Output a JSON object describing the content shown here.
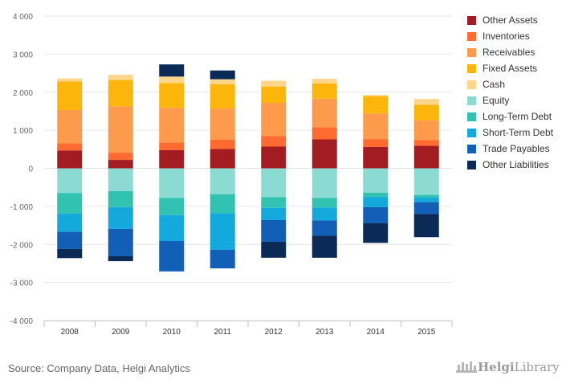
{
  "chart_data": {
    "type": "bar",
    "stacked": true,
    "categories": [
      "2008",
      "2009",
      "2010",
      "2011",
      "2012",
      "2013",
      "2014",
      "2015"
    ],
    "ylim": [
      -4000,
      4000
    ],
    "yticks": [
      -4000,
      -3000,
      -2000,
      -1000,
      0,
      1000,
      2000,
      3000,
      4000
    ],
    "ytick_labels": [
      "-4 000",
      "-3 000",
      "-2 000",
      "-1 000",
      "0",
      "1 000",
      "2 000",
      "3 000",
      "4 000"
    ],
    "legend_position": "right",
    "series": [
      {
        "name": "Other Assets",
        "color": "#a31c22",
        "values": [
          470,
          220,
          480,
          510,
          570,
          760,
          560,
          590
        ]
      },
      {
        "name": "Inventories",
        "color": "#fe6a2f",
        "values": [
          190,
          190,
          200,
          240,
          280,
          320,
          200,
          150
        ]
      },
      {
        "name": "Receivables",
        "color": "#fe9a4b",
        "values": [
          870,
          1220,
          910,
          820,
          870,
          750,
          680,
          520
        ]
      },
      {
        "name": "Fixed Assets",
        "color": "#fbb50b",
        "values": [
          750,
          690,
          650,
          640,
          430,
          400,
          450,
          410
        ]
      },
      {
        "name": "Cash",
        "color": "#fdd68a",
        "values": [
          80,
          140,
          170,
          130,
          150,
          120,
          40,
          150
        ]
      },
      {
        "name": "Equity",
        "color": "#8bdbd3",
        "values": [
          -650,
          -600,
          -780,
          -680,
          -760,
          -780,
          -640,
          -700
        ]
      },
      {
        "name": "Long-Term Debt",
        "color": "#31c2b2",
        "values": [
          -540,
          -420,
          -450,
          -500,
          -280,
          -250,
          -120,
          -70
        ]
      },
      {
        "name": "Short-Term Debt",
        "color": "#13a9dd",
        "values": [
          -480,
          -570,
          -680,
          -960,
          -320,
          -340,
          -260,
          -120
        ]
      },
      {
        "name": "Trade Payables",
        "color": "#115fb6",
        "values": [
          -450,
          -720,
          -800,
          -490,
          -570,
          -400,
          -420,
          -310
        ]
      },
      {
        "name": "Other Liabilities",
        "color": "#0b2a55",
        "values": [
          -240,
          -130,
          320,
          230,
          -420,
          -580,
          -520,
          -610
        ]
      }
    ]
  },
  "source_text": "Source: Company Data, Helgi Analytics",
  "logo": {
    "brand": "Helgi",
    "suffix": "Library"
  }
}
